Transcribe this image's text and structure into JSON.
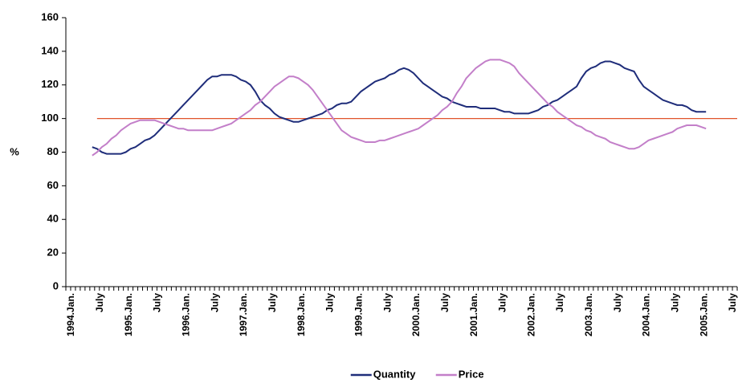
{
  "chart_data": {
    "type": "line",
    "y_label": "%",
    "categories": [
      "1994.Jan.",
      null,
      null,
      null,
      null,
      null,
      "July",
      null,
      null,
      null,
      null,
      null,
      "1995.Jan.",
      null,
      null,
      null,
      null,
      null,
      "July",
      null,
      null,
      null,
      null,
      null,
      "1996.Jan.",
      null,
      null,
      null,
      null,
      null,
      "July",
      null,
      null,
      null,
      null,
      null,
      "1997.Jan.",
      null,
      null,
      null,
      null,
      null,
      "July",
      null,
      null,
      null,
      null,
      null,
      "1998.Jan.",
      null,
      null,
      null,
      null,
      null,
      "July",
      null,
      null,
      null,
      null,
      null,
      "1999.Jan.",
      null,
      null,
      null,
      null,
      null,
      "July",
      null,
      null,
      null,
      null,
      null,
      "2000.Jan.",
      null,
      null,
      null,
      null,
      null,
      "July",
      null,
      null,
      null,
      null,
      null,
      "2001.Jan.",
      null,
      null,
      null,
      null,
      null,
      "July",
      null,
      null,
      null,
      null,
      null,
      "2002.Jan.",
      null,
      null,
      null,
      null,
      null,
      "July",
      null,
      null,
      null,
      null,
      null,
      "2003.Jan.",
      null,
      null,
      null,
      null,
      null,
      "July",
      null,
      null,
      null,
      null,
      null,
      "2004.Jan.",
      null,
      null,
      null,
      null,
      null,
      "July",
      null,
      null,
      null,
      null,
      null,
      "2005.Jan.",
      null,
      null,
      null,
      null,
      null,
      "July",
      null
    ],
    "series": [
      {
        "name": "Quantity",
        "color": "#1f2d7a",
        "values": [
          null,
          null,
          null,
          null,
          null,
          83,
          82,
          80,
          79,
          79,
          79,
          79,
          80,
          82,
          83,
          85,
          87,
          88,
          90,
          93,
          96,
          99,
          102,
          105,
          108,
          111,
          114,
          117,
          120,
          123,
          125,
          125,
          126,
          126,
          126,
          125,
          123,
          122,
          120,
          116,
          111,
          108,
          106,
          103,
          101,
          100,
          99,
          98,
          98,
          99,
          100,
          101,
          102,
          103,
          105,
          106,
          108,
          109,
          109,
          110,
          113,
          116,
          118,
          120,
          122,
          123,
          124,
          126,
          127,
          129,
          130,
          129,
          127,
          124,
          121,
          119,
          117,
          115,
          113,
          112,
          110,
          109,
          108,
          107,
          107,
          107,
          106,
          106,
          106,
          106,
          105,
          104,
          104,
          103,
          103,
          103,
          103,
          104,
          105,
          107,
          108,
          110,
          111,
          113,
          115,
          117,
          119,
          124,
          128,
          130,
          131,
          133,
          134,
          134,
          133,
          132,
          130,
          129,
          128,
          123,
          119,
          117,
          115,
          113,
          111,
          110,
          109,
          108,
          108,
          107,
          105,
          104,
          104,
          104,
          null,
          null,
          null,
          null,
          null,
          null
        ]
      },
      {
        "name": "Price",
        "color": "#c37fc9",
        "values": [
          null,
          null,
          null,
          null,
          null,
          78,
          80,
          83,
          85,
          88,
          90,
          93,
          95,
          97,
          98,
          99,
          99,
          99,
          99,
          98,
          97,
          96,
          95,
          94,
          94,
          93,
          93,
          93,
          93,
          93,
          93,
          94,
          95,
          96,
          97,
          99,
          101,
          103,
          105,
          108,
          110,
          113,
          116,
          119,
          121,
          123,
          125,
          125,
          124,
          122,
          120,
          117,
          113,
          109,
          105,
          101,
          97,
          93,
          91,
          89,
          88,
          87,
          86,
          86,
          86,
          87,
          87,
          88,
          89,
          90,
          91,
          92,
          93,
          94,
          96,
          98,
          100,
          102,
          105,
          107,
          110,
          115,
          119,
          124,
          127,
          130,
          132,
          134,
          135,
          135,
          135,
          134,
          133,
          131,
          127,
          124,
          121,
          118,
          115,
          112,
          109,
          107,
          104,
          102,
          100,
          98,
          96,
          95,
          93,
          92,
          90,
          89,
          88,
          86,
          85,
          84,
          83,
          82,
          82,
          83,
          85,
          87,
          88,
          89,
          90,
          91,
          92,
          94,
          95,
          96,
          96,
          96,
          95,
          94,
          null,
          null,
          null,
          null,
          null,
          null
        ]
      }
    ],
    "reference_line": {
      "value": 100,
      "color": "#e0532a"
    },
    "ylim": [
      0,
      160
    ],
    "yticks": [
      0,
      20,
      40,
      60,
      80,
      100,
      120,
      140,
      160
    ],
    "legend": "bottom"
  }
}
